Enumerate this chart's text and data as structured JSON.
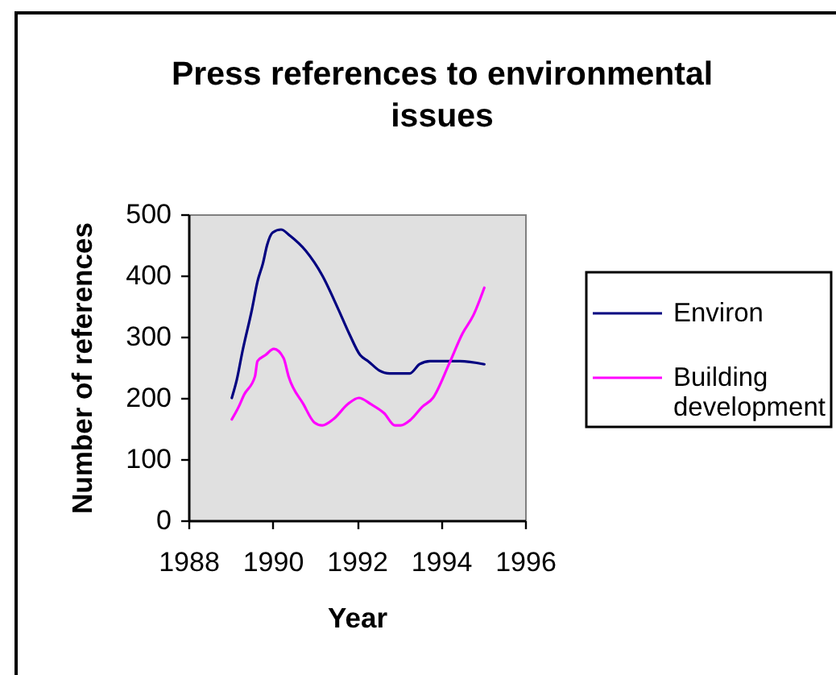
{
  "chart_data": {
    "type": "line",
    "title": "Press references to environmental issues",
    "xlabel": "Year",
    "ylabel": "Number of references",
    "xlim": [
      1988,
      1996
    ],
    "xticks": [
      1988,
      1990,
      1992,
      1994,
      1996
    ],
    "ylim": [
      0,
      500
    ],
    "yticks": [
      0,
      100,
      200,
      300,
      400,
      500
    ],
    "legend": "right",
    "series": [
      {
        "name": "Environ",
        "color": "#000080",
        "x": [
          1989.03,
          1989.15,
          1989.28,
          1989.51,
          1989.64,
          1989.77,
          1989.87,
          1990.0,
          1990.2,
          1990.41,
          1990.79,
          1991.18,
          1991.56,
          1991.82,
          1992.08,
          1992.27,
          1992.53,
          1992.78,
          1993.26,
          1993.49,
          1993.74,
          1994.45,
          1995.03
        ],
        "values": [
          200,
          230,
          275,
          345,
          390,
          420,
          450,
          470,
          475,
          465,
          440,
          400,
          345,
          305,
          270,
          260,
          245,
          240,
          240,
          255,
          260,
          260,
          255
        ]
      },
      {
        "name": "Building development",
        "color": "#ff00ff",
        "x": [
          1989.03,
          1989.19,
          1989.32,
          1989.58,
          1989.64,
          1989.83,
          1990.03,
          1990.26,
          1990.38,
          1990.73,
          1990.99,
          1991.18,
          1991.44,
          1991.79,
          1992.05,
          1992.33,
          1992.65,
          1992.91,
          1993.04,
          1993.29,
          1993.55,
          1993.81,
          1994.19,
          1994.51,
          1994.77,
          1995.03
        ],
        "values": [
          165,
          185,
          205,
          235,
          260,
          270,
          280,
          265,
          235,
          190,
          160,
          155,
          165,
          190,
          200,
          190,
          175,
          155,
          155,
          165,
          185,
          200,
          255,
          305,
          335,
          380
        ]
      }
    ]
  }
}
